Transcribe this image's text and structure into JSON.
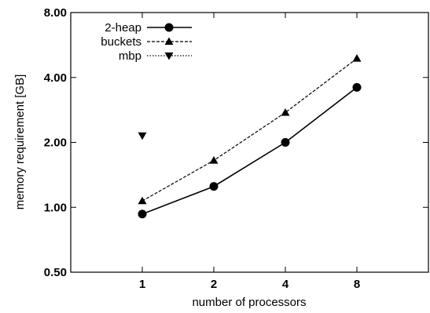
{
  "chart_data": {
    "type": "line",
    "xlabel": "number of processors",
    "ylabel": "memory requirement [GB]",
    "x_scale": "log2",
    "y_scale": "log2",
    "xlim": [
      0.5,
      16
    ],
    "ylim": [
      0.5,
      8.0
    ],
    "x_ticks": [
      1,
      2,
      4,
      8
    ],
    "x_tick_labels": [
      "1",
      "2",
      "4",
      "8"
    ],
    "y_ticks": [
      0.5,
      1.0,
      2.0,
      4.0,
      8.0
    ],
    "y_tick_labels": [
      "0.50",
      "1.00",
      "2.00",
      "4.00",
      "8.00"
    ],
    "legend_position": "top-left",
    "grid": false,
    "series": [
      {
        "name": "2-heap",
        "marker": "circle",
        "line_style": "solid",
        "x": [
          1,
          2,
          4,
          8
        ],
        "values": [
          0.93,
          1.25,
          2.0,
          3.6
        ]
      },
      {
        "name": "buckets",
        "marker": "triangle-up",
        "line_style": "dashed",
        "x": [
          1,
          2,
          4,
          8
        ],
        "values": [
          1.07,
          1.65,
          2.75,
          4.9
        ]
      },
      {
        "name": "mbp",
        "marker": "triangle-down",
        "line_style": "dotted",
        "x": [
          1
        ],
        "values": [
          2.15
        ]
      }
    ]
  }
}
